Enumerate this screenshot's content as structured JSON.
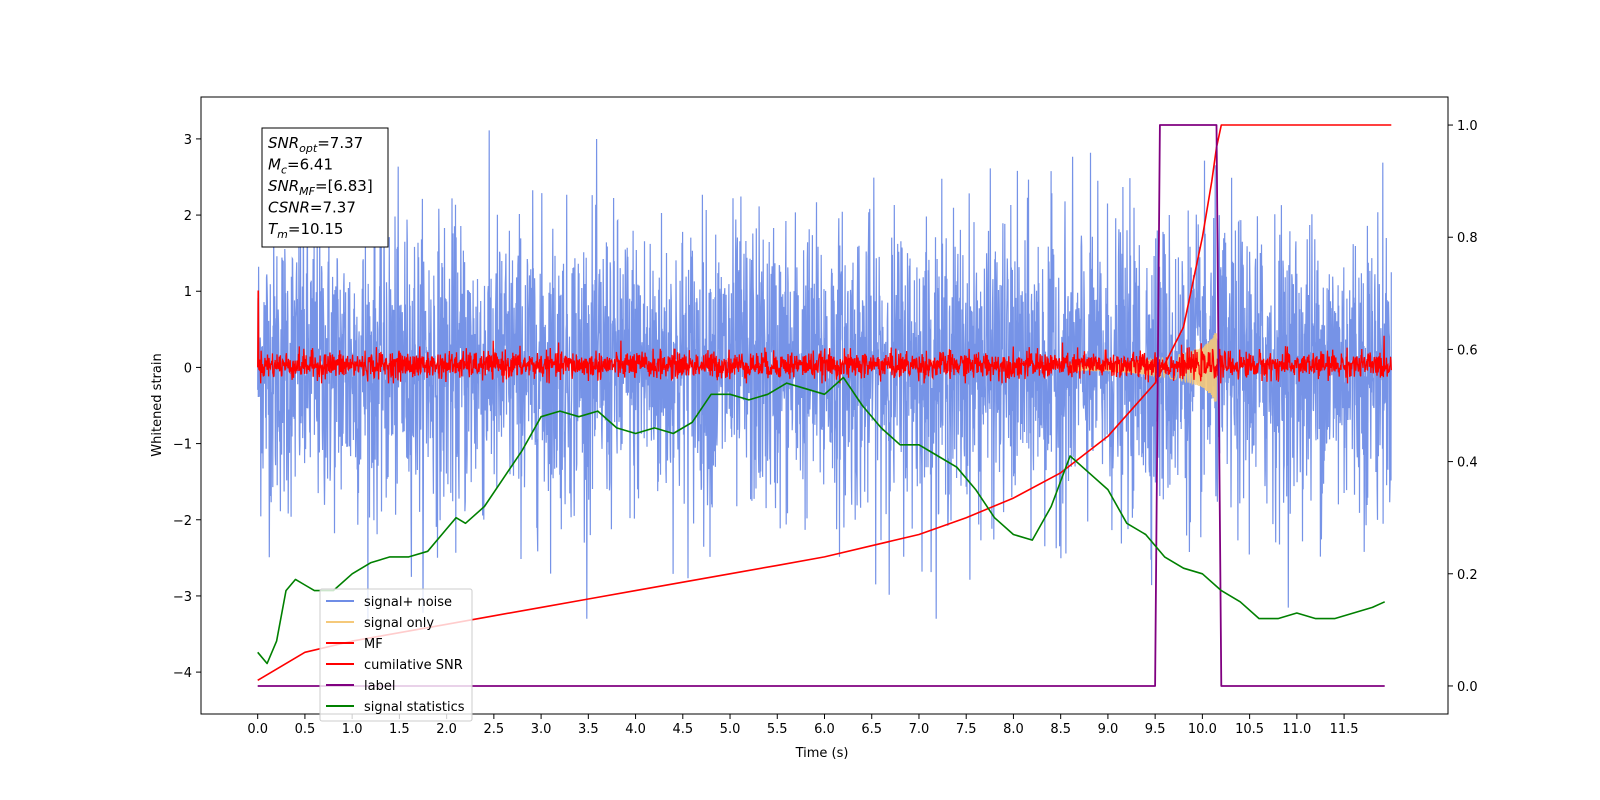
{
  "chart_data": {
    "type": "line",
    "title": "",
    "xlabel": "Time (s)",
    "ylabel": "Whitened strain",
    "xlim": [
      -0.6,
      12.6
    ],
    "ylim": [
      -4.55,
      3.55
    ],
    "y2lim": [
      -0.05,
      1.05
    ],
    "x_ticks": [
      "0.0",
      "0.5",
      "1.0",
      "1.5",
      "2.0",
      "2.5",
      "3.0",
      "3.5",
      "4.0",
      "4.5",
      "5.0",
      "5.5",
      "6.0",
      "6.5",
      "7.0",
      "7.5",
      "8.0",
      "8.5",
      "9.0",
      "9.5",
      "10.0",
      "10.5",
      "11.0",
      "11.5"
    ],
    "y_ticks": [
      "3",
      "2",
      "1",
      "0",
      "−1",
      "−2",
      "−3",
      "−4"
    ],
    "y2_ticks": [
      "1.0",
      "0.8",
      "0.6",
      "0.4",
      "0.2",
      "0.0"
    ],
    "legend_placement": "lower-left",
    "series": [
      {
        "name": "signal+ noise",
        "axis": "left",
        "color": "#6f8de6",
        "description_values": {
          "x_range": [
            0.0,
            12.0
          ],
          "typical_band": [
            -1.6,
            1.6
          ],
          "max": 3.2,
          "min": -3.3
        }
      },
      {
        "name": "signal only",
        "axis": "left",
        "color": "#f5c97a",
        "envelope_points": {
          "x": [
            9.0,
            9.3,
            9.6,
            9.8,
            10.0,
            10.1,
            10.15
          ],
          "amp": [
            0.05,
            0.08,
            0.13,
            0.18,
            0.26,
            0.38,
            0.5
          ]
        }
      },
      {
        "name": "MF",
        "axis": "left",
        "color": "#ff0000",
        "description_values": {
          "x_range": [
            0.0,
            12.0
          ],
          "typical_band": [
            -0.2,
            0.25
          ],
          "max": 1.0,
          "min": -0.2
        }
      },
      {
        "name": "cumilative SNR",
        "axis": "right",
        "color": "#ff0000",
        "x": [
          0.0,
          0.5,
          1.0,
          1.5,
          2.0,
          2.5,
          3.0,
          3.5,
          4.0,
          4.5,
          5.0,
          5.5,
          6.0,
          6.5,
          7.0,
          7.5,
          8.0,
          8.5,
          9.0,
          9.5,
          9.8,
          10.0,
          10.1,
          10.15,
          10.2,
          11.0,
          12.0
        ],
        "values": [
          0.01,
          0.06,
          0.08,
          0.095,
          0.11,
          0.125,
          0.14,
          0.155,
          0.17,
          0.185,
          0.2,
          0.215,
          0.23,
          0.25,
          0.27,
          0.3,
          0.335,
          0.38,
          0.445,
          0.54,
          0.64,
          0.8,
          0.9,
          0.96,
          1.0,
          1.0,
          1.0
        ]
      },
      {
        "name": "label",
        "axis": "right",
        "color": "#800080",
        "x": [
          0.0,
          9.5,
          9.55,
          10.15,
          10.2,
          11.93
        ],
        "values": [
          0.0,
          0.0,
          1.0,
          1.0,
          0.0,
          0.0
        ]
      },
      {
        "name": "signal statistics",
        "axis": "right",
        "color": "#008000",
        "x": [
          0.0,
          0.1,
          0.2,
          0.3,
          0.4,
          0.5,
          0.6,
          0.8,
          1.0,
          1.2,
          1.4,
          1.6,
          1.8,
          2.0,
          2.1,
          2.2,
          2.4,
          2.6,
          2.8,
          3.0,
          3.2,
          3.4,
          3.6,
          3.8,
          4.0,
          4.2,
          4.4,
          4.6,
          4.8,
          5.0,
          5.2,
          5.4,
          5.6,
          5.8,
          6.0,
          6.2,
          6.4,
          6.6,
          6.8,
          7.0,
          7.2,
          7.4,
          7.6,
          7.8,
          8.0,
          8.2,
          8.4,
          8.6,
          8.8,
          9.0,
          9.2,
          9.4,
          9.6,
          9.8,
          10.0,
          10.2,
          10.4,
          10.6,
          10.8,
          11.0,
          11.2,
          11.4,
          11.6,
          11.8,
          11.93
        ],
        "values": [
          0.06,
          0.04,
          0.08,
          0.17,
          0.19,
          0.18,
          0.17,
          0.17,
          0.2,
          0.22,
          0.23,
          0.23,
          0.24,
          0.28,
          0.3,
          0.29,
          0.32,
          0.37,
          0.42,
          0.48,
          0.49,
          0.48,
          0.49,
          0.46,
          0.45,
          0.46,
          0.45,
          0.47,
          0.52,
          0.52,
          0.51,
          0.52,
          0.54,
          0.53,
          0.52,
          0.55,
          0.5,
          0.46,
          0.43,
          0.43,
          0.41,
          0.39,
          0.35,
          0.3,
          0.27,
          0.26,
          0.32,
          0.41,
          0.38,
          0.35,
          0.29,
          0.27,
          0.23,
          0.21,
          0.2,
          0.17,
          0.15,
          0.12,
          0.12,
          0.13,
          0.12,
          0.12,
          0.13,
          0.14,
          0.15
        ]
      }
    ],
    "annotation": {
      "lines": [
        {
          "main": "SNR",
          "sub": "opt",
          "rest": "=7.37"
        },
        {
          "main": "M",
          "sub": "c",
          "rest": "=6.41"
        },
        {
          "main": "SNR",
          "sub": "MF",
          "rest": "=[6.83]"
        },
        {
          "main": "CSNR",
          "sub": "",
          "rest": "=7.37"
        },
        {
          "main": "T",
          "sub": "m",
          "rest": "=10.15"
        }
      ]
    }
  }
}
